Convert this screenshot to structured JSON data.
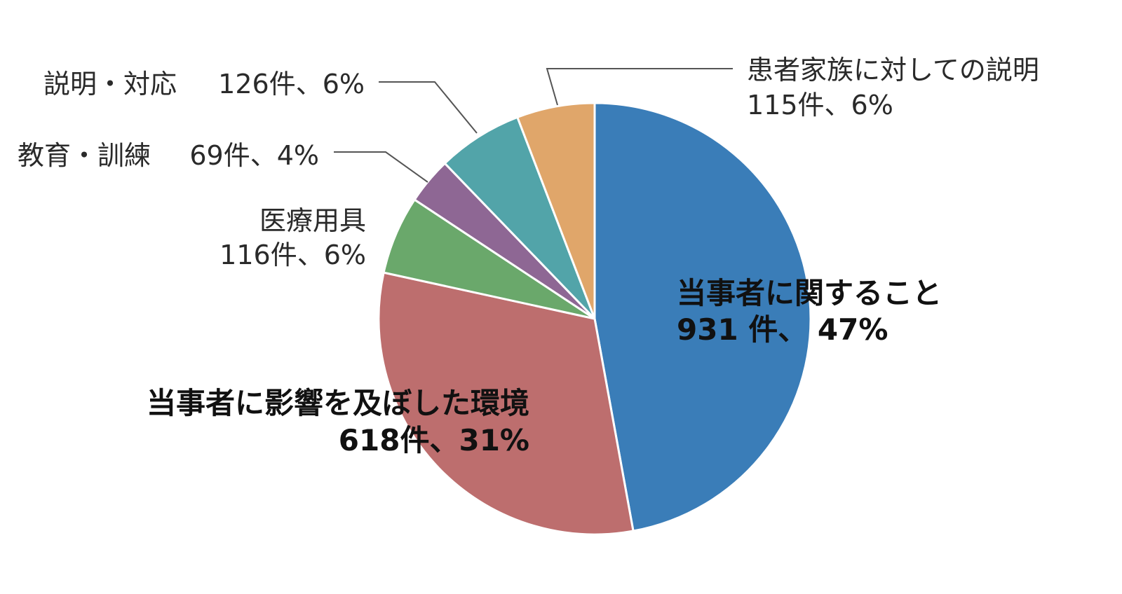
{
  "chart_data": {
    "type": "pie",
    "title": "",
    "start": "12 o'clock",
    "direction": "clockwise",
    "legend": "none",
    "slices": [
      {
        "name": "当事者に関すること",
        "count": 931,
        "percent": 47,
        "value_label": "931 件、 47%",
        "color": "#3a7db8"
      },
      {
        "name": "当事者に影響を及ぼした環境",
        "count": 618,
        "percent": 31,
        "value_label": "618件、31%",
        "color": "#bd6e6e"
      },
      {
        "name": "医療用具",
        "count": 116,
        "percent": 6,
        "value_label": "116件、6%",
        "color": "#6aa86b"
      },
      {
        "name": "教育・訓練",
        "count": 69,
        "percent": 4,
        "value_label": "69件、4%",
        "color": "#8e6794"
      },
      {
        "name": "説明・対応",
        "count": 126,
        "percent": 6,
        "value_label": "126件、6%",
        "color": "#52a4a9"
      },
      {
        "name": "患者家族に対しての説明",
        "count": 115,
        "percent": 6,
        "value_label": "115件、6%",
        "color": "#e0a66a"
      }
    ]
  }
}
